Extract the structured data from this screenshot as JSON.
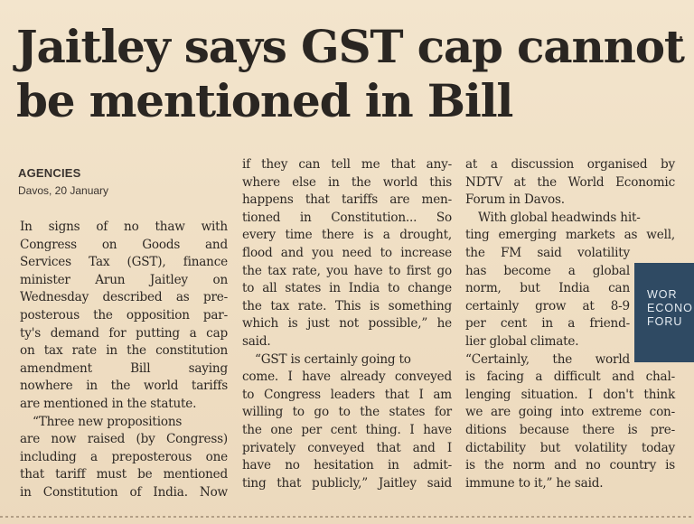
{
  "headline": {
    "line1": "Jaitley says GST cap cannot",
    "line2": "be mentioned in Bill"
  },
  "byline": {
    "agency": "AGENCIES",
    "dateline": "Davos, 20 January"
  },
  "columns": {
    "col1": [
      "In signs of no thaw with",
      "Congress on Goods and",
      "Services Tax (GST), finance",
      "minister Arun Jaitley on",
      "Wednesday described as pre-",
      "posterous the opposition par-",
      "ty's demand for putting a cap",
      "on tax rate in the constitution",
      "amendment Bill saying",
      "nowhere in the world tariffs",
      "are mentioned in the statute.",
      "“Three new propositions",
      "are now raised (by Congress)",
      "including a preposterous one",
      "that tariff must be mentioned",
      "in Constitution of India. Now"
    ],
    "col2": [
      "if they can tell me that any-",
      "where else in the world this",
      "happens that tariffs are men-",
      "tioned in Constitution... So",
      "every time there is a drought,",
      "flood and you need to increase",
      "the tax rate, you have to first go",
      "to all states in India to change",
      "the tax rate. This is something",
      "which is just not possible,” he",
      "said.",
      "“GST is certainly going to",
      "come. I have already conveyed",
      "to Congress leaders that I am",
      "willing to go to the states for",
      "the one per cent thing. I have",
      "privately conveyed that and I",
      "have no hesitation in admit-",
      "ting that publicly,” Jaitley said"
    ],
    "col3": [
      "at a discussion organised by",
      "NDTV at the World Economic",
      "Forum in Davos.",
      "With global headwinds hit-",
      "ting emerging markets as well,",
      "the FM said volatility",
      "has become a global",
      "norm, but India can",
      "certainly grow at 8-9",
      "per cent in a friend-",
      "lier global climate.",
      "“Certainly, the world",
      "is facing a difficult and chal-",
      "lenging situation. I don't think",
      "we are going into extreme con-",
      "ditions because there is pre-",
      "dictability but volatility today",
      "is the norm and no country is",
      "immune to it,” he said."
    ]
  },
  "photo": {
    "caption_lines": [
      "WOR",
      "ECONO",
      "FORU"
    ]
  },
  "colors": {
    "paper": "#f1e1c8",
    "ink": "#2b2622",
    "logo_bg": "#2f4a63"
  }
}
